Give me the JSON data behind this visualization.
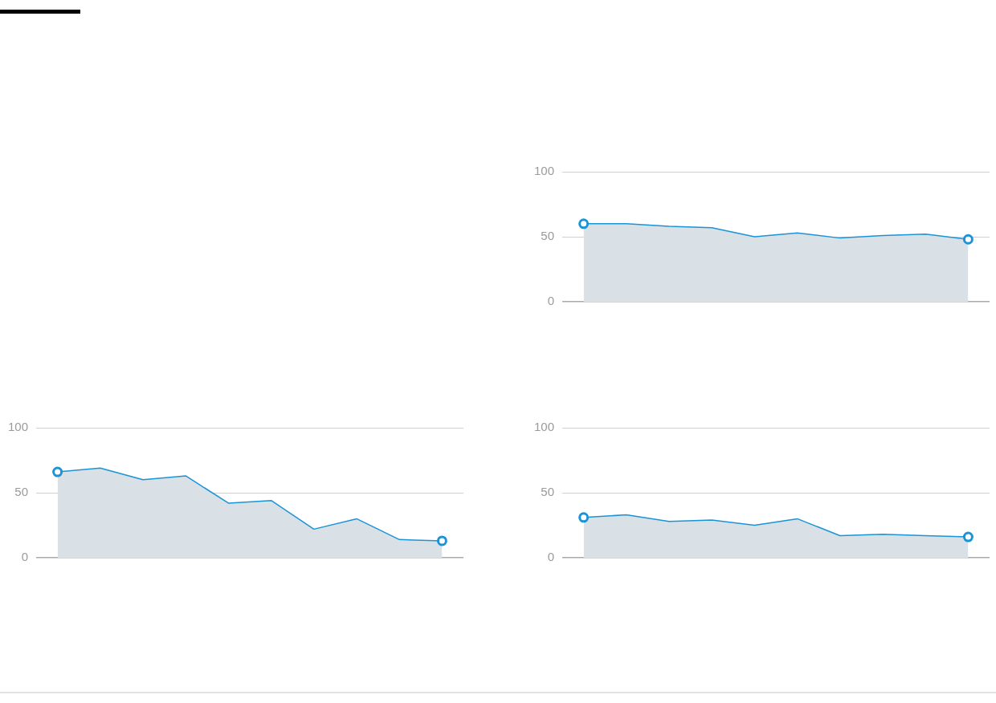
{
  "chart_data": [
    {
      "type": "area",
      "categories": [
        null,
        null,
        null,
        null,
        null,
        null,
        null,
        null,
        null,
        null
      ],
      "values": [
        60,
        60,
        58,
        57,
        50,
        53,
        49,
        51,
        52,
        48
      ],
      "color": "#1a94d6",
      "ylim": [
        0,
        100
      ],
      "yticks": [
        0,
        50,
        100
      ],
      "grid": "y"
    },
    {
      "type": "area",
      "categories": [
        null,
        null,
        null,
        null,
        null,
        null,
        null,
        null,
        null,
        null
      ],
      "values": [
        66,
        69,
        60,
        63,
        42,
        44,
        22,
        30,
        14,
        13
      ],
      "color": "#1a94d6",
      "ylim": [
        0,
        100
      ],
      "yticks": [
        0,
        50,
        100
      ],
      "grid": "y"
    },
    {
      "type": "area",
      "categories": [
        null,
        null,
        null,
        null,
        null,
        null,
        null,
        null,
        null,
        null
      ],
      "values": [
        31,
        33,
        28,
        29,
        25,
        30,
        17,
        18,
        17,
        16
      ],
      "color": "#1a94d6",
      "ylim": [
        0,
        100
      ],
      "yticks": [
        0,
        50,
        100
      ],
      "grid": "y"
    }
  ]
}
